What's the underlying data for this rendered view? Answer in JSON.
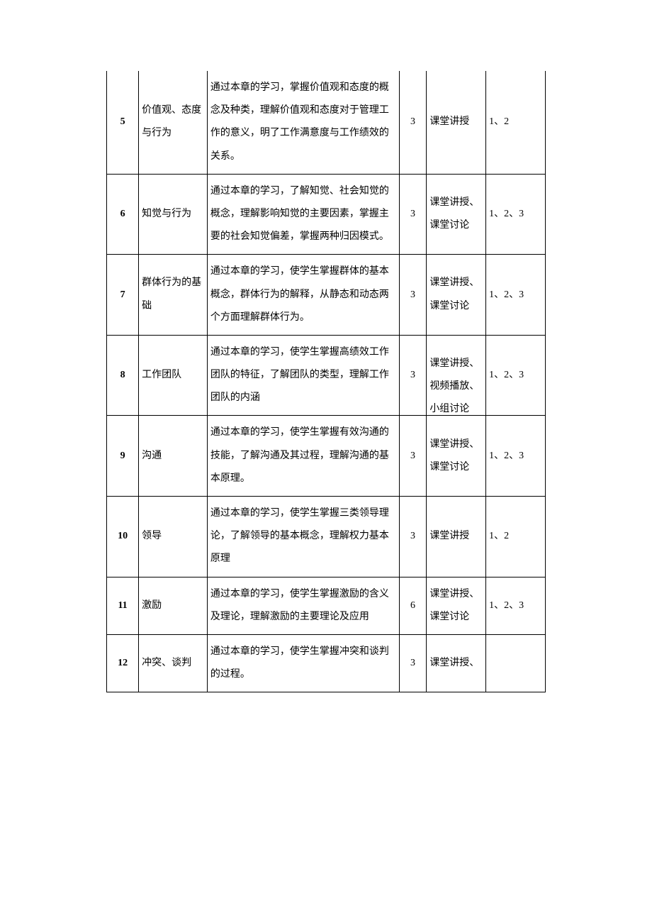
{
  "rows": [
    {
      "num": "5",
      "topic": "价值观、态度与行为",
      "desc": "通过本章的学习，掌握价值观和态度的概念及种类，理解价值观和态度对于管理工作的意义，明了工作满意度与工作绩效的关系。",
      "hours": "3",
      "method": "课堂讲授",
      "goals": "1、2"
    },
    {
      "num": "6",
      "topic": "知觉与行为",
      "desc": "通过本章的学习，了解知觉、社会知觉的概念，理解影响知觉的主要因素，掌握主要的社会知觉偏差，掌握两种归因模式。",
      "hours": "3",
      "method": "课堂讲授、课堂讨论",
      "goals": "1、2、3"
    },
    {
      "num": "7",
      "topic": "群体行为的基础",
      "desc": "通过本章的学习，使学生掌握群体的基本概念，群体行为的解释，从静态和动态两个方面理解群体行为。",
      "hours": "3",
      "method": "课堂讲授、课堂讨论",
      "goals": "1、2、3"
    },
    {
      "num": "8",
      "topic": "工作团队",
      "desc": "通过本章的学习，使学生掌握高绩效工作团队的特征，了解团队的类型，理解工作团队的内涵",
      "hours": "3",
      "method": "课堂讲授、视频播放、",
      "method_overflow": "小组讨论",
      "goals": "1、2、3"
    },
    {
      "num": "9",
      "topic": "沟通",
      "desc": "通过本章的学习，使学生掌握有效沟通的技能，了解沟通及其过程，理解沟通的基本原理。",
      "hours": "3",
      "method": "课堂讲授、课堂讨论",
      "goals": "1、2、3"
    },
    {
      "num": "10",
      "topic": "领导",
      "desc": "通过本章的学习，使学生掌握三类领导理论，了解领导的基本概念，理解权力基本原理",
      "hours": "3",
      "method": "课堂讲授",
      "goals": "1、2"
    },
    {
      "num": "11",
      "topic": "激励",
      "desc": "通过本章的学习，使学生掌握激励的含义及理论，理解激励的主要理论及应用",
      "hours": "6",
      "method": "课堂讲授、课堂讨论",
      "goals": "1、2、3"
    },
    {
      "num": "12",
      "topic": "冲突、谈判",
      "desc": "通过本章的学习，使学生掌握冲突和谈判的过程。",
      "hours": "3",
      "method": "课堂讲授、",
      "goals": ""
    }
  ],
  "colors": {
    "border": "#000000",
    "text": "#000000",
    "background": "#ffffff"
  }
}
